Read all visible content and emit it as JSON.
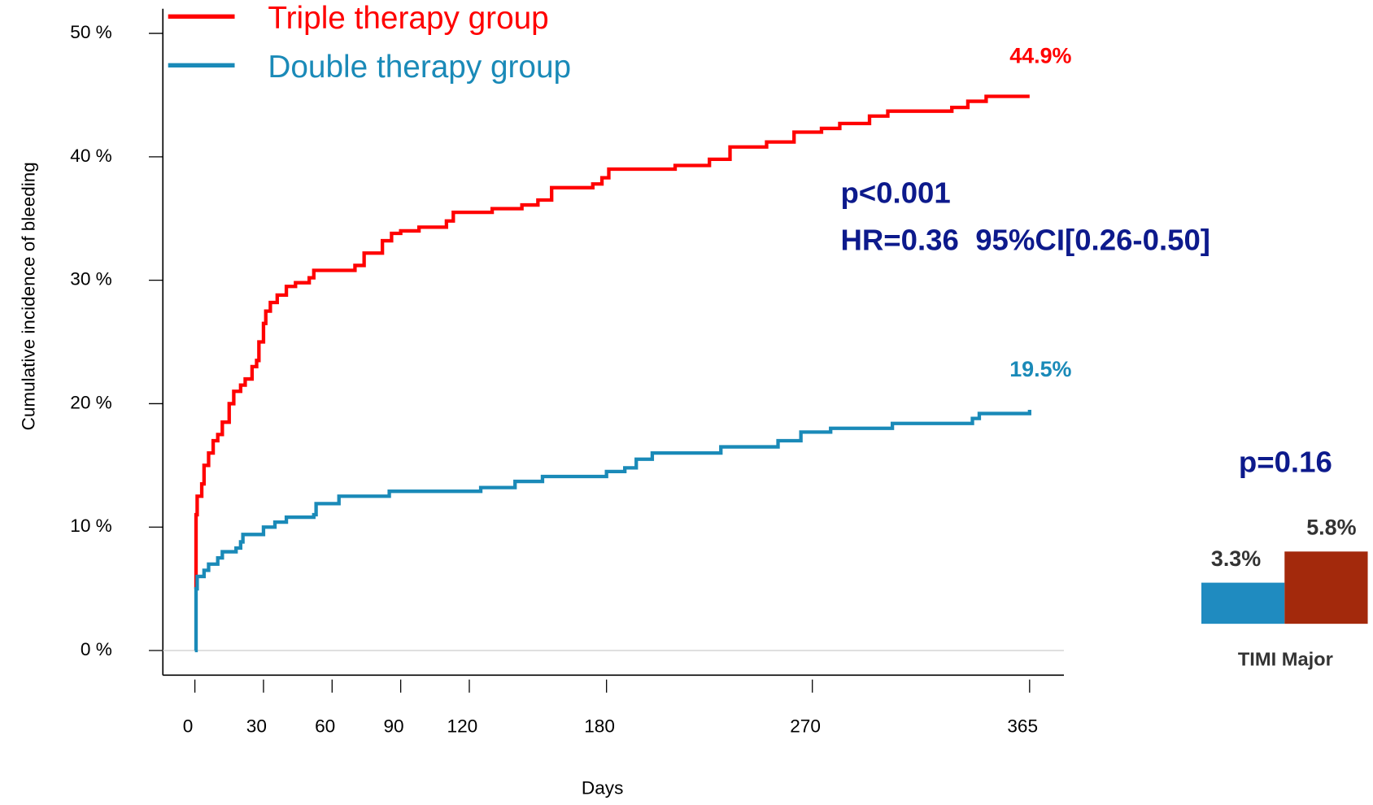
{
  "chart_data": [
    {
      "type": "line",
      "step": true,
      "y_label": "Cumulative incidence of bleeding",
      "x_label": "Days",
      "xlim": [
        -14,
        380
      ],
      "ylim": [
        -2,
        52
      ],
      "xticks": [
        0,
        30,
        60,
        90,
        120,
        180,
        270,
        365
      ],
      "yticks": [
        {
          "value": 0,
          "label": "0 %"
        },
        {
          "value": 10,
          "label": "10 %"
        },
        {
          "value": 20,
          "label": "20 %"
        },
        {
          "value": 30,
          "label": "30 %"
        },
        {
          "value": 40,
          "label": "40 %"
        },
        {
          "value": 50,
          "label": "50 %"
        }
      ],
      "legend": "upper left",
      "series": [
        {
          "name": "Triple therapy group",
          "color": "#ff0000",
          "end_label": "44.9%",
          "x": [
            0,
            0.5,
            1,
            3,
            4,
            6,
            8,
            10,
            12,
            15,
            17,
            20,
            22,
            25,
            27,
            28,
            30,
            31,
            33,
            36,
            40,
            44,
            50,
            52,
            70,
            74,
            82,
            86,
            90,
            98,
            110,
            113,
            130,
            143,
            150,
            156,
            174,
            178,
            181,
            210,
            225,
            234,
            250,
            262,
            274,
            282,
            295,
            303,
            331,
            338,
            346,
            365
          ],
          "values": [
            5,
            11,
            12.5,
            13.5,
            15,
            16,
            17,
            17.5,
            18.5,
            20,
            21,
            21.5,
            22,
            23,
            23.5,
            25,
            26.5,
            27.5,
            28.2,
            28.8,
            29.5,
            29.8,
            30.2,
            30.8,
            31.2,
            32.2,
            33.2,
            33.8,
            34,
            34.3,
            34.8,
            35.5,
            35.8,
            36.1,
            36.5,
            37.5,
            37.8,
            38.3,
            39,
            39.3,
            39.8,
            40.8,
            41.2,
            42,
            42.3,
            42.7,
            43.3,
            43.7,
            44,
            44.5,
            44.9,
            44.9
          ]
        },
        {
          "name": "Double therapy group",
          "color": "#1a8ab8",
          "end_label": "19.5%",
          "x": [
            0,
            0.5,
            1,
            4,
            6,
            10,
            12,
            18,
            20,
            21,
            30,
            35,
            40,
            52,
            53,
            63,
            85,
            125,
            140,
            152,
            180,
            188,
            193,
            200,
            230,
            255,
            265,
            278,
            305,
            340,
            343,
            365
          ],
          "values": [
            0,
            5,
            6,
            6.5,
            7,
            7.5,
            8,
            8.3,
            8.8,
            9.4,
            10,
            10.4,
            10.8,
            11,
            11.9,
            12.5,
            12.9,
            13.2,
            13.7,
            14.1,
            14.5,
            14.8,
            15.5,
            16,
            16.5,
            17,
            17.7,
            18,
            18.4,
            18.8,
            19.2,
            19.5
          ]
        }
      ],
      "annotations": [
        "p<0.001",
        "HR=0.36  95%CI[0.26-0.50]"
      ]
    },
    {
      "type": "bar",
      "title": "TIMI Major",
      "annotation": "p=0.16",
      "values": [
        3.3,
        5.8
      ],
      "value_labels": [
        "3.3%",
        "5.8%"
      ],
      "colors": [
        "#1f8bc0",
        "#a3290c"
      ]
    }
  ]
}
